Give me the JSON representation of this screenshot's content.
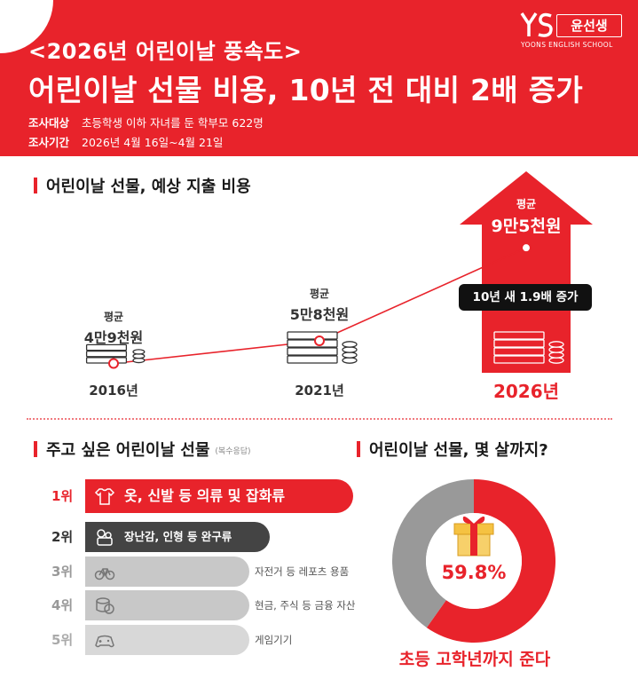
{
  "header": {
    "subtitle": "<2026년 어린이날 풍속도>",
    "title": "어린이날 선물 비용, 10년 전 대비 2배 증가",
    "survey_target_label": "조사대상",
    "survey_target": "초등학생 이하 자녀를 둔 학부모 622명",
    "survey_period_label": "조사기간",
    "survey_period": "2026년 4월 16일~4월 21일",
    "logo_name": "윤선생",
    "logo_school": "YOONS ENGLISH SCHOOL"
  },
  "colors": {
    "accent": "#e8232b",
    "dark": "#111111",
    "gray": "#999999"
  },
  "spending_section": {
    "title": "어린이날 선물, 예상 지출 비용",
    "avg_word": "평균",
    "callout": "10년 새 1.9배 증가"
  },
  "ranking_section": {
    "title": "주고 싶은 어린이날 선물",
    "note": "(복수응답)",
    "items": [
      {
        "rank": "1위",
        "label": "옷, 신발 등 의류 및 잡화류",
        "icon": "clothes-icon"
      },
      {
        "rank": "2위",
        "label": "장난감, 인형 등 완구류",
        "icon": "toy-icon"
      },
      {
        "rank": "3위",
        "label": "자전거 등 레포츠 용품",
        "icon": "bicycle-icon"
      },
      {
        "rank": "4위",
        "label": "현금, 주식 등 금융 자산",
        "icon": "money-icon"
      },
      {
        "rank": "5위",
        "label": "게임기기",
        "icon": "gamepad-icon"
      }
    ]
  },
  "age_section": {
    "title": "어린이날 선물, 몇 살까지?",
    "caption": "초등 고학년까지 준다"
  },
  "chart_data": [
    {
      "type": "line",
      "categories": [
        "2016년",
        "2021년",
        "2026년"
      ],
      "values": [
        49000,
        58000,
        95000
      ],
      "value_labels": [
        "4만9천원",
        "5만8천원",
        "9만5천원"
      ],
      "ylim": [
        40000,
        100000
      ],
      "grid": false,
      "legend": "none"
    },
    {
      "type": "pie",
      "values": [
        59.8,
        40.2
      ],
      "value_label": "59.8%",
      "colors": [
        "#e8232b",
        "#999999"
      ]
    }
  ]
}
